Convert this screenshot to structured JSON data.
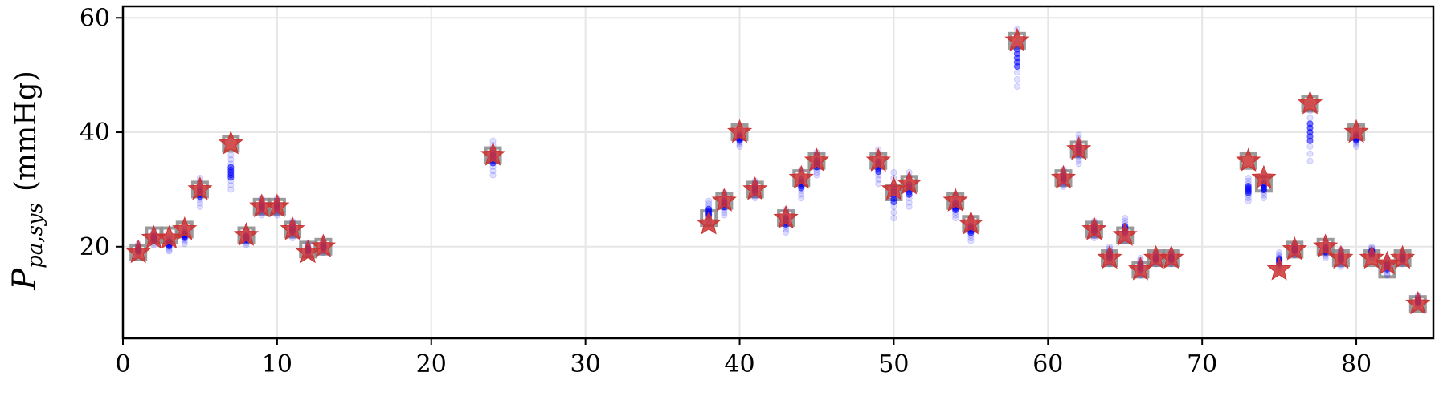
{
  "chart_data": {
    "type": "scatter",
    "title": "",
    "xlabel": "",
    "ylabel": {
      "symbol": "P",
      "subscript": "pa,sys",
      "unit": "(mmHg)"
    },
    "xlim": [
      0,
      85
    ],
    "ylim": [
      4,
      62
    ],
    "x_ticks": [
      0,
      10,
      20,
      30,
      40,
      50,
      60,
      70,
      80
    ],
    "y_ticks": [
      20,
      40,
      60
    ],
    "grid": true,
    "legend": "none",
    "colors": {
      "star": "#cc3333",
      "square": "#888888",
      "samples": "#0000ff",
      "grid": "#e6e6e6"
    },
    "series": [
      {
        "marker": "square",
        "x": [
          1,
          2,
          3,
          4,
          5,
          7,
          8,
          9,
          10,
          11,
          12,
          13,
          24,
          38,
          39,
          40,
          41,
          43,
          44,
          45,
          49,
          50,
          51,
          54,
          55,
          58,
          61,
          62,
          63,
          64,
          65,
          66,
          67,
          68,
          73,
          74,
          76,
          77,
          78,
          79,
          80,
          81,
          82,
          83,
          84
        ],
        "values": [
          19,
          22,
          22,
          23,
          30,
          38,
          22,
          27,
          27,
          23,
          19.5,
          20,
          36,
          25,
          28,
          40,
          30,
          25,
          32,
          35,
          35,
          29.5,
          31,
          28,
          24,
          56,
          32,
          37,
          23,
          18,
          22,
          16,
          18,
          18,
          35,
          31,
          19.5,
          45,
          20,
          18,
          40,
          18,
          16,
          18,
          10
        ]
      },
      {
        "marker": "star",
        "x": [
          1,
          2,
          3,
          4,
          5,
          7,
          8,
          9,
          10,
          11,
          12,
          13,
          24,
          38,
          39,
          40,
          41,
          43,
          44,
          45,
          49,
          50,
          51,
          54,
          55,
          58,
          61,
          62,
          63,
          64,
          65,
          66,
          67,
          68,
          73,
          74,
          75,
          76,
          77,
          78,
          79,
          80,
          81,
          82,
          83,
          84
        ],
        "values": [
          19,
          21.5,
          21.5,
          23,
          30,
          38,
          22,
          27,
          27,
          23,
          19,
          20,
          36,
          24,
          28,
          40,
          30,
          25,
          32,
          35,
          35,
          30,
          31,
          28,
          24,
          56,
          32,
          37,
          23,
          18,
          22,
          16,
          18,
          18,
          35,
          32,
          16,
          19.5,
          45,
          20,
          18,
          40,
          18,
          17,
          18,
          10
        ]
      },
      {
        "marker": "samples",
        "x": [
          1,
          2,
          3,
          4,
          5,
          7,
          8,
          9,
          10,
          11,
          12,
          13,
          24,
          38,
          39,
          40,
          41,
          43,
          44,
          45,
          49,
          50,
          51,
          54,
          55,
          58,
          61,
          62,
          63,
          64,
          65,
          66,
          67,
          68,
          73,
          74,
          75,
          76,
          77,
          78,
          79,
          80,
          81,
          82,
          83,
          84
        ],
        "values": [
          19.5,
          21.5,
          20.5,
          22,
          29.5,
          33,
          21.5,
          27,
          27,
          23,
          19.5,
          20,
          35.5,
          26,
          27.5,
          39,
          30,
          24.5,
          31,
          34.5,
          34,
          29,
          30,
          27,
          23,
          53,
          32,
          37,
          23,
          18.5,
          23,
          16.5,
          18,
          18,
          30,
          30.5,
          17.5,
          19.5,
          40,
          19.5,
          18,
          39,
          19,
          16.5,
          18,
          10.5
        ],
        "spread": [
          1,
          1.2,
          1.3,
          1.5,
          2.5,
          3,
          1.2,
          1.5,
          1.5,
          1.5,
          1,
          1,
          3,
          2,
          2,
          1.5,
          1.5,
          2,
          2.5,
          2,
          3,
          4,
          3,
          2,
          2,
          5,
          1.5,
          2.5,
          1.5,
          1.5,
          2,
          1.5,
          1,
          1,
          2,
          2,
          1.5,
          1,
          5,
          1.5,
          1.5,
          1.5,
          1,
          1.5,
          1,
          1
        ]
      }
    ]
  }
}
